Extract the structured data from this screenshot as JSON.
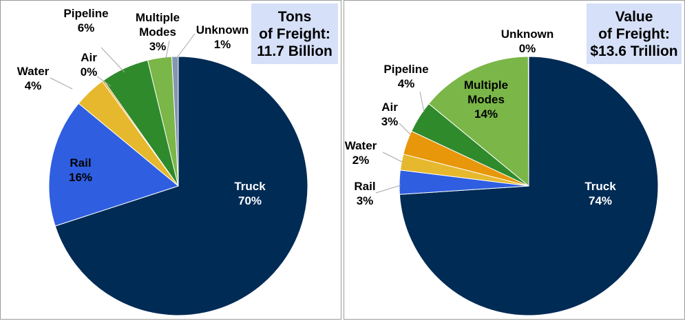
{
  "chart_data": [
    {
      "type": "pie",
      "title": [
        "Tons",
        "of Freight:",
        "11.7 Billion"
      ],
      "slices": [
        {
          "label": "Truck",
          "pct_label": "70%",
          "value": 70,
          "color": "#002b55"
        },
        {
          "label": "Rail",
          "pct_label": "16%",
          "value": 16,
          "color": "#2f5fe0"
        },
        {
          "label": "Water",
          "pct_label": "4%",
          "value": 4,
          "color": "#e6b82e"
        },
        {
          "label": "Air",
          "pct_label": "0%",
          "value": 0.2,
          "color": "#e8960a"
        },
        {
          "label": "Pipeline",
          "pct_label": "6%",
          "value": 6,
          "color": "#2f8a2c"
        },
        {
          "label": "Multiple Modes",
          "pct_label": "3%",
          "value": 3,
          "color": "#7ab648"
        },
        {
          "label": "Unknown",
          "pct_label": "1%",
          "value": 0.8,
          "color": "#8496b0"
        }
      ]
    },
    {
      "type": "pie",
      "title": [
        "Value",
        "of Freight:",
        "$13.6 Trillion"
      ],
      "slices": [
        {
          "label": "Truck",
          "pct_label": "74%",
          "value": 74,
          "color": "#002b55"
        },
        {
          "label": "Rail",
          "pct_label": "3%",
          "value": 3,
          "color": "#2f5fe0"
        },
        {
          "label": "Water",
          "pct_label": "2%",
          "value": 2,
          "color": "#e6b82e"
        },
        {
          "label": "Air",
          "pct_label": "3%",
          "value": 3,
          "color": "#e8960a"
        },
        {
          "label": "Pipeline",
          "pct_label": "4%",
          "value": 4,
          "color": "#2f8a2c"
        },
        {
          "label": "Multiple Modes",
          "pct_label": "14%",
          "value": 14,
          "color": "#7ab648"
        },
        {
          "label": "Unknown",
          "pct_label": "0%",
          "value": 0.05,
          "color": "#8496b0"
        }
      ]
    }
  ]
}
